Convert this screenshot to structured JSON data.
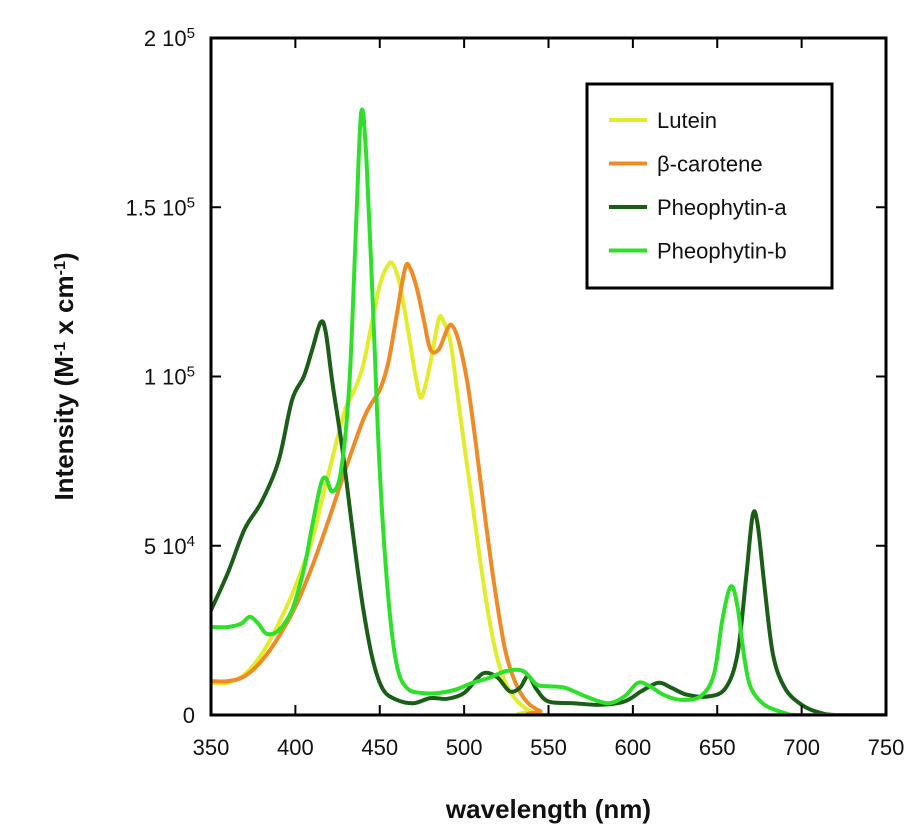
{
  "chart_data": {
    "type": "line",
    "xlabel": "wavelength (nm)",
    "ylabel": {
      "base": "Intensity (M",
      "sup1": "-1",
      "mid": " x cm",
      "sup2": "-1",
      "end": ")"
    },
    "xlim": [
      350,
      750
    ],
    "ylim": [
      0,
      200000
    ],
    "x_ticks": [
      {
        "value": 350,
        "label": "350"
      },
      {
        "value": 400,
        "label": "400"
      },
      {
        "value": 450,
        "label": "450"
      },
      {
        "value": 500,
        "label": "500"
      },
      {
        "value": 550,
        "label": "550"
      },
      {
        "value": 600,
        "label": "600"
      },
      {
        "value": 650,
        "label": "650"
      },
      {
        "value": 700,
        "label": "700"
      },
      {
        "value": 750,
        "label": "750"
      }
    ],
    "y_ticks": [
      {
        "value": 0,
        "mant": "0",
        "exp": ""
      },
      {
        "value": 50000,
        "mant": "5 10",
        "exp": "4"
      },
      {
        "value": 100000,
        "mant": "1 10",
        "exp": "5"
      },
      {
        "value": 150000,
        "mant": "1.5 10",
        "exp": "5"
      },
      {
        "value": 200000,
        "mant": "2 10",
        "exp": "5"
      }
    ],
    "grid": false,
    "legend_position": "top-right",
    "series": [
      {
        "name": "Lutein",
        "color": "#e3ec2a",
        "points": [
          [
            350,
            9500
          ],
          [
            360,
            9500
          ],
          [
            370,
            12000
          ],
          [
            380,
            18000
          ],
          [
            390,
            27000
          ],
          [
            400,
            38000
          ],
          [
            410,
            52000
          ],
          [
            415,
            62000
          ],
          [
            420,
            72000
          ],
          [
            425,
            82000
          ],
          [
            430,
            91000
          ],
          [
            435,
            96000
          ],
          [
            440,
            103000
          ],
          [
            445,
            115000
          ],
          [
            450,
            127000
          ],
          [
            455,
            133000
          ],
          [
            458,
            133000
          ],
          [
            462,
            127000
          ],
          [
            467,
            113000
          ],
          [
            472,
            98000
          ],
          [
            475,
            94000
          ],
          [
            480,
            104000
          ],
          [
            485,
            117000
          ],
          [
            488,
            116000
          ],
          [
            492,
            110000
          ],
          [
            496,
            95000
          ],
          [
            500,
            80000
          ],
          [
            505,
            62000
          ],
          [
            510,
            44000
          ],
          [
            515,
            28000
          ],
          [
            520,
            16000
          ],
          [
            525,
            9000
          ],
          [
            530,
            5000
          ],
          [
            535,
            2500
          ],
          [
            540,
            1000
          ],
          [
            550,
            0
          ],
          [
            750,
            0
          ]
        ]
      },
      {
        "name": "β-carotene",
        "color": "#f08a24",
        "points": [
          [
            350,
            10000
          ],
          [
            360,
            10000
          ],
          [
            370,
            11500
          ],
          [
            380,
            16000
          ],
          [
            390,
            23000
          ],
          [
            400,
            32000
          ],
          [
            410,
            44000
          ],
          [
            420,
            58000
          ],
          [
            430,
            73000
          ],
          [
            440,
            87000
          ],
          [
            445,
            92000
          ],
          [
            450,
            96000
          ],
          [
            455,
            104000
          ],
          [
            460,
            118000
          ],
          [
            465,
            132000
          ],
          [
            468,
            132000
          ],
          [
            472,
            126000
          ],
          [
            476,
            117000
          ],
          [
            480,
            108000
          ],
          [
            485,
            108000
          ],
          [
            490,
            114000
          ],
          [
            493,
            115000
          ],
          [
            497,
            110000
          ],
          [
            502,
            98000
          ],
          [
            507,
            80000
          ],
          [
            512,
            60000
          ],
          [
            518,
            38000
          ],
          [
            524,
            20000
          ],
          [
            530,
            10000
          ],
          [
            537,
            4000
          ],
          [
            545,
            1200
          ],
          [
            555,
            0
          ],
          [
            750,
            0
          ]
        ]
      },
      {
        "name": "Pheophytin-a",
        "color": "#1a5e17",
        "points": [
          [
            350,
            31000
          ],
          [
            360,
            42000
          ],
          [
            370,
            55000
          ],
          [
            380,
            63000
          ],
          [
            390,
            75000
          ],
          [
            398,
            93000
          ],
          [
            405,
            100000
          ],
          [
            410,
            108000
          ],
          [
            415,
            116000
          ],
          [
            418,
            113000
          ],
          [
            422,
            98000
          ],
          [
            428,
            78000
          ],
          [
            434,
            54000
          ],
          [
            440,
            32000
          ],
          [
            446,
            16000
          ],
          [
            452,
            7500
          ],
          [
            460,
            4500
          ],
          [
            470,
            3500
          ],
          [
            480,
            5000
          ],
          [
            490,
            4800
          ],
          [
            500,
            6500
          ],
          [
            508,
            11000
          ],
          [
            513,
            12500
          ],
          [
            520,
            11000
          ],
          [
            527,
            7000
          ],
          [
            533,
            8000
          ],
          [
            538,
            11500
          ],
          [
            543,
            7500
          ],
          [
            550,
            4000
          ],
          [
            565,
            3500
          ],
          [
            580,
            3000
          ],
          [
            595,
            4000
          ],
          [
            605,
            7000
          ],
          [
            615,
            9500
          ],
          [
            623,
            8000
          ],
          [
            632,
            6000
          ],
          [
            645,
            5500
          ],
          [
            655,
            8000
          ],
          [
            662,
            18000
          ],
          [
            667,
            40000
          ],
          [
            671,
            59000
          ],
          [
            674,
            56000
          ],
          [
            678,
            38000
          ],
          [
            683,
            18000
          ],
          [
            690,
            8000
          ],
          [
            700,
            3000
          ],
          [
            710,
            800
          ],
          [
            720,
            0
          ],
          [
            750,
            0
          ]
        ]
      },
      {
        "name": "Pheophytin-b",
        "color": "#2fe02b",
        "points": [
          [
            350,
            26000
          ],
          [
            360,
            26000
          ],
          [
            368,
            27000
          ],
          [
            373,
            29000
          ],
          [
            378,
            27000
          ],
          [
            383,
            24000
          ],
          [
            390,
            25000
          ],
          [
            398,
            31000
          ],
          [
            405,
            43000
          ],
          [
            410,
            56000
          ],
          [
            415,
            68000
          ],
          [
            418,
            70000
          ],
          [
            422,
            66000
          ],
          [
            427,
            72000
          ],
          [
            432,
            98000
          ],
          [
            436,
            145000
          ],
          [
            439,
            178000
          ],
          [
            442,
            165000
          ],
          [
            446,
            120000
          ],
          [
            450,
            72000
          ],
          [
            455,
            35000
          ],
          [
            460,
            15000
          ],
          [
            466,
            8000
          ],
          [
            475,
            6500
          ],
          [
            485,
            6500
          ],
          [
            495,
            7500
          ],
          [
            505,
            9500
          ],
          [
            515,
            11000
          ],
          [
            525,
            13000
          ],
          [
            535,
            13000
          ],
          [
            543,
            9000
          ],
          [
            550,
            8500
          ],
          [
            560,
            8000
          ],
          [
            572,
            5500
          ],
          [
            585,
            3500
          ],
          [
            595,
            5500
          ],
          [
            603,
            9500
          ],
          [
            610,
            8500
          ],
          [
            618,
            6000
          ],
          [
            628,
            4500
          ],
          [
            640,
            5500
          ],
          [
            648,
            12000
          ],
          [
            653,
            28000
          ],
          [
            658,
            38000
          ],
          [
            662,
            32000
          ],
          [
            666,
            17000
          ],
          [
            670,
            8000
          ],
          [
            678,
            3000
          ],
          [
            690,
            600
          ],
          [
            700,
            0
          ],
          [
            750,
            0
          ]
        ]
      }
    ]
  }
}
